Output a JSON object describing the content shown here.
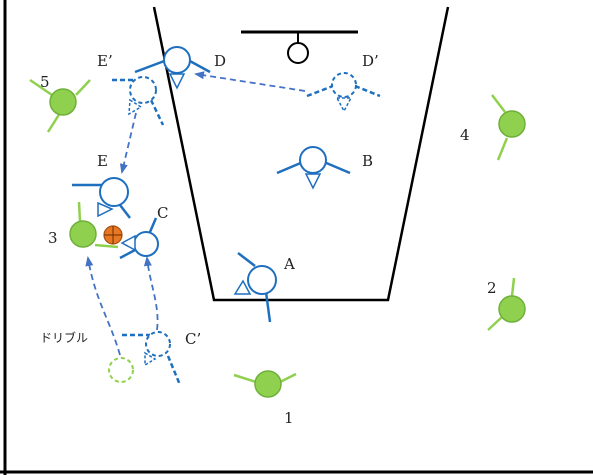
{
  "colors": {
    "court_line": "#000000",
    "offense": "#1f6fbf",
    "offense_fill": "#ffffff",
    "defense": "#8fd14f",
    "defense_fill": "#8fd14f",
    "ball": "#e87722",
    "arrow": "#4472c4"
  },
  "labels": {
    "A": "A",
    "B": "B",
    "C": "C",
    "C_prime": "C’",
    "D": "D",
    "D_prime": "D’",
    "E": "E",
    "E_prime": "E’",
    "d1": "1",
    "d2": "2",
    "d3": "3",
    "d4": "4",
    "d5": "5",
    "dribble": "ドリブル"
  },
  "icons": {
    "ball": "basketball-icon",
    "hoop": "hoop-icon"
  }
}
